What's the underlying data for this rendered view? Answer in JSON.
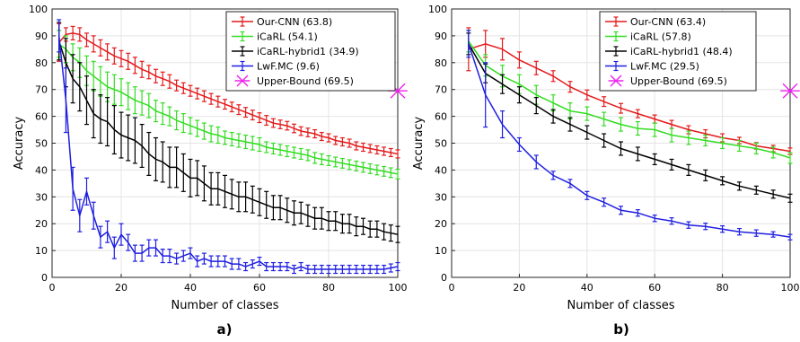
{
  "chart_data": [
    {
      "type": "line",
      "panel_label": "a)",
      "xlabel": "Number of classes",
      "ylabel": "Accuracy",
      "xlim": [
        0,
        100
      ],
      "ylim": [
        0,
        100
      ],
      "xticks": [
        0,
        20,
        40,
        60,
        80,
        100
      ],
      "yticks": [
        0,
        10,
        20,
        30,
        40,
        50,
        60,
        70,
        80,
        90,
        100
      ],
      "grid": true,
      "legend_position": "top-right",
      "series": [
        {
          "name": "Our-CNN (63.8)",
          "color": "#e41a1c",
          "x": [
            2,
            4,
            6,
            8,
            10,
            12,
            14,
            16,
            18,
            20,
            22,
            24,
            26,
            28,
            30,
            32,
            34,
            36,
            38,
            40,
            42,
            44,
            46,
            48,
            50,
            52,
            54,
            56,
            58,
            60,
            62,
            64,
            66,
            68,
            70,
            72,
            74,
            76,
            78,
            80,
            82,
            84,
            86,
            88,
            90,
            92,
            94,
            96,
            98,
            100
          ],
          "y": [
            87.5,
            90.5,
            91,
            90.5,
            88.5,
            87,
            85.5,
            84,
            82.5,
            81.5,
            80.5,
            79,
            77.5,
            76.5,
            75,
            74,
            73,
            71.5,
            70.5,
            69.5,
            68.5,
            67.5,
            66.5,
            65.5,
            64.5,
            63.5,
            62.5,
            61.5,
            60.5,
            59.5,
            58.5,
            57.5,
            57,
            56.5,
            55.5,
            54.5,
            54,
            53.5,
            52.5,
            52,
            51,
            50.5,
            50,
            49,
            48.5,
            48,
            47.5,
            47,
            46.5,
            46
          ],
          "err": [
            7,
            2.5,
            2.5,
            2.5,
            2.5,
            3,
            3,
            3,
            3,
            3,
            3,
            3,
            3,
            2.5,
            2.5,
            2.5,
            2.5,
            2,
            2,
            2,
            2,
            2,
            2,
            2,
            1.8,
            1.8,
            1.8,
            1.8,
            1.8,
            1.8,
            1.8,
            1.6,
            1.6,
            1.6,
            1.6,
            1.6,
            1.6,
            1.5,
            1.5,
            1.5,
            1.5,
            1.5,
            1.5,
            1.5,
            1.5,
            1.5,
            1.5,
            1.5,
            1.5,
            1.5
          ]
        },
        {
          "name": "iCaRL (54.1)",
          "color": "#33dd22",
          "x": [
            2,
            4,
            6,
            8,
            10,
            12,
            14,
            16,
            18,
            20,
            22,
            24,
            26,
            28,
            30,
            32,
            34,
            36,
            38,
            40,
            42,
            44,
            46,
            48,
            50,
            52,
            54,
            56,
            58,
            60,
            62,
            64,
            66,
            68,
            70,
            72,
            74,
            76,
            78,
            80,
            82,
            84,
            86,
            88,
            90,
            92,
            94,
            96,
            98,
            100
          ],
          "y": [
            87,
            85,
            82,
            80,
            77,
            75,
            73,
            71,
            70,
            69,
            67.5,
            66,
            65,
            64,
            62,
            61,
            60,
            58.5,
            57.5,
            56.5,
            55.5,
            54.5,
            53.5,
            53,
            52,
            51.5,
            51,
            50.5,
            50,
            49.5,
            48.5,
            48,
            47.5,
            47,
            46.5,
            46,
            45.5,
            44.5,
            44,
            43.5,
            43,
            42.5,
            42,
            41.5,
            41,
            40.5,
            40,
            39.5,
            39,
            38.5
          ],
          "err": [
            5,
            5,
            5,
            5.5,
            5.5,
            5.5,
            5.5,
            5.5,
            5.5,
            5,
            5,
            5,
            4.5,
            4.5,
            4,
            4,
            3.5,
            3.5,
            3.5,
            3,
            3,
            3,
            3,
            3,
            2.5,
            2.5,
            2.5,
            2.5,
            2.5,
            2.5,
            2,
            2,
            2,
            2,
            2,
            2,
            2,
            2,
            2,
            1.8,
            1.8,
            1.8,
            1.8,
            1.8,
            1.8,
            1.8,
            1.8,
            1.8,
            1.8,
            1.8
          ]
        },
        {
          "name": "iCaRL-hybrid1 (34.9)",
          "color": "#000000",
          "x": [
            2,
            4,
            6,
            8,
            10,
            12,
            14,
            16,
            18,
            20,
            22,
            24,
            26,
            28,
            30,
            32,
            34,
            36,
            38,
            40,
            42,
            44,
            46,
            48,
            50,
            52,
            54,
            56,
            58,
            60,
            62,
            64,
            66,
            68,
            70,
            72,
            74,
            76,
            78,
            80,
            82,
            84,
            86,
            88,
            90,
            92,
            94,
            96,
            98,
            100
          ],
          "y": [
            88,
            80,
            74,
            71,
            66,
            61,
            59,
            58,
            55,
            53,
            52,
            51,
            49,
            46,
            44,
            43,
            41,
            41,
            39,
            37,
            37,
            35,
            33,
            33,
            32,
            31,
            30,
            30,
            29,
            28,
            27,
            26,
            26,
            25,
            24,
            24,
            23,
            22,
            22,
            21,
            21,
            20,
            20,
            19,
            19,
            18,
            18,
            17,
            16.5,
            16
          ],
          "err": [
            7,
            9,
            9,
            9,
            9,
            9,
            9,
            9,
            9,
            8.5,
            8.5,
            8.5,
            8,
            8,
            8,
            7.5,
            7.5,
            7.5,
            7,
            7,
            6.5,
            6.5,
            6,
            6,
            6,
            5.5,
            5.5,
            5.5,
            5,
            5,
            5,
            4.5,
            4.5,
            4.5,
            4.5,
            4,
            4,
            4,
            4,
            3.5,
            3.5,
            3.5,
            3.5,
            3.5,
            3,
            3,
            3,
            3,
            3,
            3
          ]
        },
        {
          "name": "LwF.MC (9.6)",
          "color": "#1f1fe0",
          "x": [
            2,
            4,
            6,
            8,
            10,
            12,
            14,
            16,
            18,
            20,
            22,
            24,
            26,
            28,
            30,
            32,
            34,
            36,
            38,
            40,
            42,
            44,
            46,
            48,
            50,
            52,
            54,
            56,
            58,
            60,
            62,
            64,
            66,
            68,
            70,
            72,
            74,
            76,
            78,
            80,
            82,
            84,
            86,
            88,
            90,
            92,
            94,
            96,
            98,
            100
          ],
          "y": [
            90,
            66,
            33,
            23,
            32,
            23,
            15,
            17,
            11,
            16,
            13,
            9,
            9,
            11,
            11,
            8,
            8,
            7,
            8,
            9,
            6,
            7,
            6,
            6,
            6,
            5,
            5,
            4,
            5,
            6,
            4,
            4,
            4,
            4,
            3,
            4,
            3,
            3,
            3,
            3,
            3,
            3,
            3,
            3,
            3,
            3,
            3,
            3,
            3.5,
            4
          ],
          "err": [
            6,
            12,
            8,
            6,
            5,
            5,
            4,
            4,
            4,
            4,
            3,
            3,
            3,
            3,
            3,
            2.5,
            2.5,
            2,
            2,
            2,
            2,
            2,
            2,
            2,
            2,
            2,
            2,
            1.5,
            1.5,
            1.5,
            1.5,
            1.5,
            1.5,
            1.5,
            1.5,
            1.5,
            1.5,
            1.5,
            1.5,
            1.5,
            1.5,
            1.5,
            1.5,
            1.5,
            1.5,
            1.5,
            1.5,
            1.5,
            1.5,
            1.5
          ]
        },
        {
          "name": "Upper-Bound (69.5)",
          "color": "#ee22ee",
          "marker": "x",
          "x": [
            100
          ],
          "y": [
            69.5
          ],
          "err": [
            0
          ]
        }
      ]
    },
    {
      "type": "line",
      "panel_label": "b)",
      "xlabel": "Number of classes",
      "ylabel": "Accuracy",
      "xlim": [
        0,
        100
      ],
      "ylim": [
        0,
        100
      ],
      "xticks": [
        0,
        20,
        40,
        60,
        80,
        100
      ],
      "yticks": [
        0,
        10,
        20,
        30,
        40,
        50,
        60,
        70,
        80,
        90,
        100
      ],
      "grid": true,
      "legend_position": "top-right",
      "series": [
        {
          "name": "Our-CNN (63.4)",
          "color": "#e41a1c",
          "x": [
            5,
            10,
            15,
            20,
            25,
            30,
            35,
            40,
            45,
            50,
            55,
            60,
            65,
            70,
            75,
            80,
            85,
            90,
            95,
            100
          ],
          "y": [
            85,
            87,
            85,
            81,
            78,
            75,
            71,
            68,
            65.5,
            63,
            61,
            59,
            57,
            55,
            53.5,
            52,
            51,
            49,
            48,
            47
          ],
          "err": [
            8,
            5,
            4,
            3,
            2.5,
            2,
            2,
            1.8,
            1.8,
            1.8,
            1.5,
            1.5,
            1.5,
            1.5,
            1.5,
            1.5,
            1.2,
            1.2,
            1.2,
            1.2
          ]
        },
        {
          "name": "iCaRL (57.8)",
          "color": "#33dd22",
          "x": [
            5,
            10,
            15,
            20,
            25,
            30,
            35,
            40,
            45,
            50,
            55,
            60,
            65,
            70,
            75,
            80,
            85,
            90,
            95,
            100
          ],
          "y": [
            88,
            79,
            75,
            72,
            68,
            65,
            62,
            61,
            59,
            57,
            55.5,
            55,
            53,
            52,
            51,
            50,
            49,
            48,
            46.5,
            44.5
          ],
          "err": [
            4,
            4,
            4,
            3.5,
            3.5,
            3,
            3,
            2.5,
            2.5,
            2.5,
            2.5,
            2.5,
            2.5,
            2.5,
            2,
            2,
            2,
            2,
            2,
            2
          ]
        },
        {
          "name": "iCaRL-hybrid1 (48.4)",
          "color": "#000000",
          "x": [
            5,
            10,
            15,
            20,
            25,
            30,
            35,
            40,
            45,
            50,
            55,
            60,
            65,
            70,
            75,
            80,
            85,
            90,
            95,
            100
          ],
          "y": [
            87,
            76,
            72,
            68,
            64,
            60,
            57,
            54,
            51,
            48,
            46,
            44,
            42,
            40,
            38,
            36,
            34,
            32.5,
            31,
            29.5
          ],
          "err": [
            4,
            3.5,
            3.5,
            3,
            3,
            2.5,
            2.5,
            2.5,
            2.5,
            2.5,
            2.5,
            2,
            2,
            2,
            2,
            1.5,
            1.5,
            1.5,
            1.5,
            1.5
          ]
        },
        {
          "name": "LwF.MC (29.5)",
          "color": "#1f1fe0",
          "x": [
            5,
            10,
            15,
            20,
            25,
            30,
            35,
            40,
            45,
            50,
            55,
            60,
            65,
            70,
            75,
            80,
            85,
            90,
            95,
            100
          ],
          "y": [
            87,
            68,
            57,
            49.5,
            43,
            38,
            35,
            30.5,
            28,
            25,
            24,
            22,
            21,
            19.5,
            19,
            18,
            17,
            16.5,
            16,
            15
          ],
          "err": [
            5,
            12,
            5,
            2.5,
            2.5,
            1.5,
            1.5,
            1.5,
            1.5,
            1.5,
            1.2,
            1.2,
            1.2,
            1.2,
            1.2,
            1.2,
            1.2,
            1.2,
            1,
            1
          ]
        },
        {
          "name": "Upper-Bound (69.5)",
          "color": "#ee22ee",
          "marker": "x",
          "x": [
            100
          ],
          "y": [
            69.5
          ],
          "err": [
            0
          ]
        }
      ]
    }
  ]
}
